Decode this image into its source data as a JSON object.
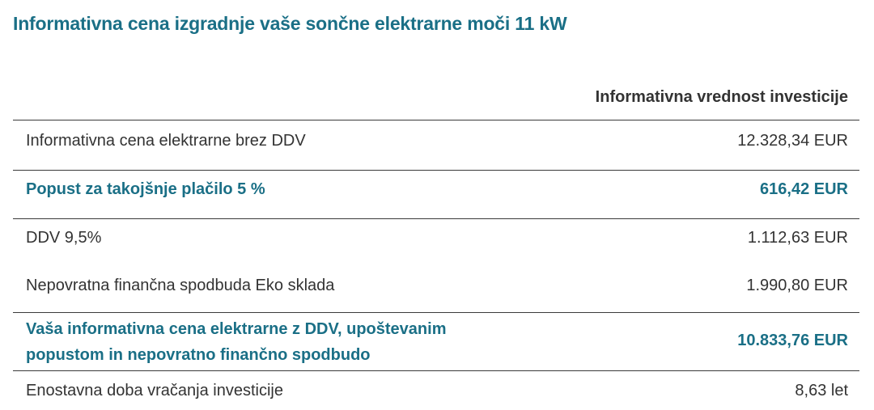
{
  "title": "Informativna cena izgradnje vaše sončne elektrarne moči 11 kW",
  "column_header": "Informativna vrednost investicije",
  "colors": {
    "accent": "#1a6f86",
    "text": "#333333",
    "rule": "#3a3a3a"
  },
  "rows": [
    {
      "label": "Informativna cena elektrarne brez DDV",
      "value": "12.328,34 EUR",
      "highlight": false
    },
    {
      "label": "Popust za takojšnje plačilo 5 %",
      "value": "616,42 EUR",
      "highlight": true
    },
    {
      "label": "DDV 9,5%",
      "value": "1.112,63 EUR",
      "highlight": false
    },
    {
      "label": "Nepovratna finančna spodbuda Eko sklada",
      "value": "1.990,80 EUR",
      "highlight": false
    },
    {
      "label_line1": "Vaša informativna cena elektrarne z DDV, upoštevanim",
      "label_line2": "popustom in nepovratno finančno spodbudo",
      "value": "10.833,76 EUR",
      "highlight": true
    },
    {
      "label": "Enostavna doba vračanja investicije",
      "value": "8,63 let",
      "highlight": false
    }
  ]
}
